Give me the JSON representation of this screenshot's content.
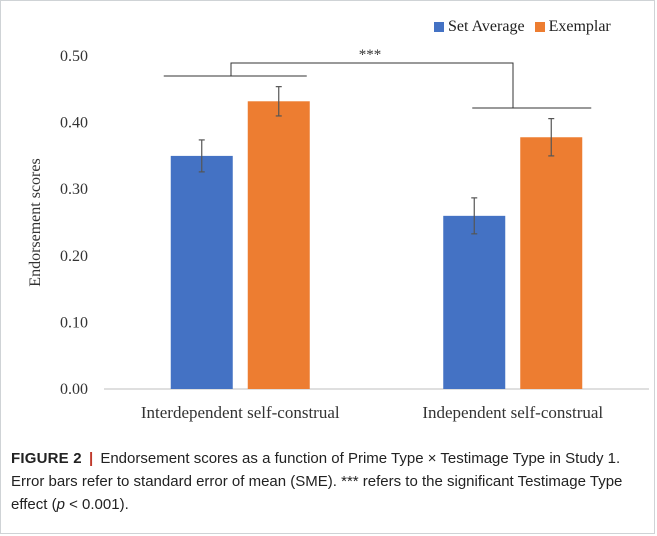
{
  "figure": {
    "caption_label": "FIGURE 2",
    "caption_separator": "|",
    "caption_text_1": "Endorsement scores as a function of Prime Type × Testimage Type in Study 1. Error bars refer to standard error of mean (SME). *** refers to the significant Testimage Type effect (",
    "caption_p": "p",
    "caption_text_2": " < 0.001)."
  },
  "chart_data": {
    "type": "bar",
    "categories": [
      "Interdependent self-construal",
      "Independent self-construal"
    ],
    "series": [
      {
        "name": "Set Average",
        "color": "#4472c4",
        "values": [
          0.35,
          0.26
        ],
        "errors": [
          0.024,
          0.027
        ]
      },
      {
        "name": "Exemplar",
        "color": "#ed7d31",
        "values": [
          0.432,
          0.378
        ],
        "errors": [
          0.022,
          0.028
        ]
      }
    ],
    "title": "",
    "xlabel": "",
    "ylabel": "Endorsement scores",
    "ylim": [
      0,
      0.5
    ],
    "yticks": [
      "0.00",
      "0.10",
      "0.20",
      "0.30",
      "0.40",
      "0.50"
    ],
    "legend_position": "top-right",
    "grid": false,
    "annotation": "***"
  }
}
